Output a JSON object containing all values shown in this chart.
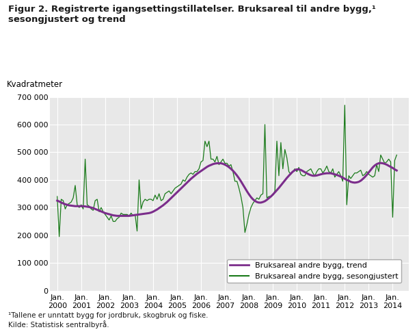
{
  "title_line1": "Figur 2. Registrerte igangsettingstillatelser. Bruksareal til andre bygg,¹",
  "title_line2": "sesongjustert og trend",
  "ylabel": "Kvadratmeter",
  "footnote1": "¹Tallene er unntatt bygg for jordbruk, skogbruk og fiske.",
  "footnote2": "Kilde: Statistisk sentralbyrå.",
  "legend_trend": "Bruksareal andre bygg, trend",
  "legend_seas": "Bruksareal andre bygg, sesongjustert",
  "trend_color": "#7B2D8B",
  "seas_color": "#1a7a1a",
  "plot_bg_color": "#e8e8e8",
  "fig_bg_color": "#ffffff",
  "grid_color": "#ffffff",
  "ylim": [
    0,
    700000
  ],
  "yticks": [
    0,
    100000,
    200000,
    300000,
    400000,
    500000,
    600000,
    700000
  ],
  "start_year": 2000,
  "start_month": 1,
  "trend_values": [
    325000,
    322000,
    318000,
    315000,
    312000,
    310000,
    308000,
    307000,
    306000,
    305000,
    305000,
    305000,
    305000,
    305000,
    304000,
    303000,
    302000,
    300000,
    298000,
    295000,
    292000,
    289000,
    286000,
    283000,
    280000,
    278000,
    276000,
    274000,
    272000,
    271000,
    270000,
    270000,
    270000,
    270000,
    270000,
    270000,
    270000,
    271000,
    272000,
    273000,
    274000,
    275000,
    276000,
    277000,
    278000,
    279000,
    280000,
    282000,
    285000,
    289000,
    293000,
    298000,
    303000,
    308000,
    314000,
    320000,
    327000,
    334000,
    341000,
    348000,
    355000,
    362000,
    369000,
    376000,
    383000,
    390000,
    397000,
    404000,
    410000,
    416000,
    422000,
    427000,
    432000,
    437000,
    442000,
    447000,
    451000,
    454000,
    457000,
    459000,
    460000,
    460000,
    460000,
    458000,
    455000,
    451000,
    446000,
    440000,
    433000,
    425000,
    416000,
    406000,
    395000,
    383000,
    371000,
    359000,
    348000,
    338000,
    330000,
    324000,
    320000,
    318000,
    318000,
    320000,
    323000,
    328000,
    334000,
    340000,
    347000,
    355000,
    363000,
    371000,
    380000,
    389000,
    398000,
    407000,
    415000,
    423000,
    430000,
    435000,
    438000,
    438000,
    436000,
    432000,
    428000,
    424000,
    420000,
    417000,
    415000,
    415000,
    416000,
    418000,
    420000,
    422000,
    423000,
    424000,
    424000,
    424000,
    422000,
    420000,
    418000,
    415000,
    412000,
    408000,
    404000,
    400000,
    397000,
    393000,
    391000,
    390000,
    391000,
    393000,
    397000,
    403000,
    410000,
    418000,
    427000,
    436000,
    445000,
    452000,
    457000,
    460000,
    461000,
    460000,
    458000,
    455000,
    451000,
    447000,
    443000,
    438000,
    434000
  ],
  "seas_values": [
    340000,
    195000,
    330000,
    325000,
    295000,
    310000,
    315000,
    320000,
    335000,
    380000,
    310000,
    300000,
    310000,
    295000,
    475000,
    310000,
    305000,
    295000,
    290000,
    325000,
    330000,
    285000,
    300000,
    285000,
    275000,
    265000,
    255000,
    270000,
    250000,
    250000,
    260000,
    265000,
    280000,
    275000,
    275000,
    275000,
    270000,
    280000,
    270000,
    275000,
    215000,
    400000,
    295000,
    320000,
    330000,
    325000,
    330000,
    330000,
    325000,
    345000,
    330000,
    350000,
    325000,
    330000,
    350000,
    355000,
    360000,
    350000,
    360000,
    370000,
    375000,
    380000,
    385000,
    400000,
    395000,
    410000,
    420000,
    425000,
    420000,
    430000,
    430000,
    440000,
    465000,
    470000,
    540000,
    520000,
    540000,
    475000,
    475000,
    465000,
    485000,
    455000,
    465000,
    475000,
    460000,
    460000,
    450000,
    455000,
    430000,
    395000,
    395000,
    370000,
    340000,
    300000,
    210000,
    240000,
    275000,
    300000,
    315000,
    325000,
    335000,
    330000,
    345000,
    350000,
    600000,
    335000,
    340000,
    340000,
    345000,
    360000,
    540000,
    415000,
    535000,
    440000,
    510000,
    480000,
    430000,
    420000,
    430000,
    440000,
    430000,
    445000,
    420000,
    415000,
    415000,
    430000,
    435000,
    440000,
    425000,
    415000,
    430000,
    440000,
    440000,
    425000,
    435000,
    450000,
    430000,
    425000,
    440000,
    410000,
    420000,
    430000,
    415000,
    395000,
    670000,
    310000,
    415000,
    405000,
    415000,
    425000,
    425000,
    430000,
    435000,
    415000,
    420000,
    430000,
    420000,
    415000,
    410000,
    415000,
    455000,
    430000,
    490000,
    475000,
    460000,
    465000,
    475000,
    465000,
    265000,
    470000,
    490000
  ]
}
